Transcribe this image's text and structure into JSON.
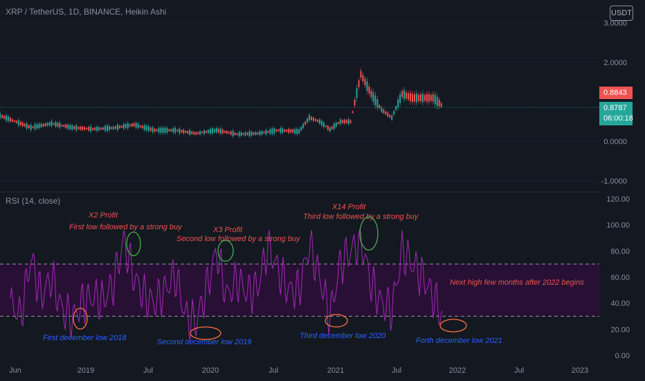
{
  "header": {
    "title": "XRP / TetherUS, 1D, BINANCE, Heikin Ashi",
    "currency_button": "USDT"
  },
  "price_axis": {
    "ticks": [
      "3.0000",
      "2.0000",
      "0.0000",
      "-1.0000"
    ],
    "last_price": "0.8843",
    "prev_close": "0.8787",
    "countdown": "06:00:18",
    "colors": {
      "down": "#ef5350",
      "up": "#26a69a"
    }
  },
  "rsi": {
    "label": "RSI (14, close)",
    "ticks": [
      "120.00",
      "100.00",
      "80.00",
      "60.00",
      "40.00",
      "20.00",
      "0.00"
    ],
    "upper_band": 70,
    "lower_band": 30,
    "line_color": "#9c27b0",
    "band_fill_color": "#2a1036"
  },
  "time_axis": {
    "ticks": [
      "Jun",
      "2019",
      "Jul",
      "2020",
      "Jul",
      "2021",
      "Jul",
      "2022",
      "Jul",
      "2023"
    ]
  },
  "annotations": {
    "profit_x2": "X2 Profit",
    "first_low_buy": "First low followed by a strong buy",
    "profit_x3": "X3 Profit",
    "second_low_buy": "Second low followed by a strong buy",
    "profit_x14": "X14 Profit",
    "third_low_buy": "Third low followed by a strong buy",
    "next_high": "Next high few months after 2022 begins",
    "first_december_low": "First december low 2018",
    "second_december_low": "Second december low 2019",
    "third_december_low": "Third december low 2020",
    "forth_december_low": "Forth december low 2021",
    "colors": {
      "red_text": "#ef5350",
      "blue_text": "#2962ff",
      "circle_green": "#4caf50",
      "circle_orange": "#ff7043"
    }
  },
  "chart_data": [
    {
      "type": "line",
      "title": "XRP / TetherUS, 1D, BINANCE, Heikin Ashi",
      "series": [
        {
          "name": "XRP / TetherUS",
          "x": [
            "2018-05",
            "2018-06",
            "2018-08",
            "2018-10",
            "2018-12",
            "2019-02",
            "2019-04",
            "2019-06",
            "2019-08",
            "2019-10",
            "2019-12",
            "2020-02",
            "2020-04",
            "2020-06",
            "2020-08",
            "2020-10",
            "2020-11",
            "2020-12",
            "2021-01",
            "2021-02",
            "2021-03",
            "2021-04",
            "2021-05",
            "2021-06",
            "2021-07",
            "2021-08",
            "2021-09",
            "2021-10",
            "2021-11",
            "2021-12"
          ],
          "values": [
            0.65,
            0.55,
            0.35,
            0.45,
            0.35,
            0.31,
            0.34,
            0.42,
            0.28,
            0.28,
            0.2,
            0.28,
            0.18,
            0.2,
            0.28,
            0.25,
            0.6,
            0.5,
            0.3,
            0.5,
            0.5,
            1.7,
            1.2,
            0.8,
            0.6,
            1.2,
            1.1,
            1.1,
            1.1,
            0.88
          ]
        }
      ],
      "yticks": [
        "3.0000",
        "2.0000",
        "0.0000",
        "-1.0000"
      ],
      "ylim": [
        -1.2,
        3.0
      ]
    },
    {
      "type": "line",
      "title": "RSI (14, close)",
      "series": [
        {
          "name": "RSI (14, close)",
          "x": [
            "2018-06",
            "2018-07",
            "2018-08",
            "2018-09",
            "2018-10",
            "2018-11",
            "2018-12",
            "2019-01",
            "2019-02",
            "2019-03",
            "2019-04",
            "2019-05",
            "2019-06",
            "2019-07",
            "2019-08",
            "2019-09",
            "2019-10",
            "2019-11",
            "2019-12",
            "2020-01",
            "2020-02",
            "2020-03",
            "2020-04",
            "2020-05",
            "2020-06",
            "2020-07",
            "2020-08",
            "2020-09",
            "2020-10",
            "2020-11",
            "2020-12",
            "2021-01",
            "2021-02",
            "2021-03",
            "2021-04",
            "2021-05",
            "2021-06",
            "2021-07",
            "2021-08",
            "2021-09",
            "2021-10",
            "2021-11",
            "2021-12"
          ],
          "values": [
            40,
            30,
            75,
            45,
            60,
            35,
            28,
            40,
            45,
            42,
            55,
            88,
            60,
            45,
            40,
            50,
            62,
            30,
            25,
            50,
            80,
            45,
            58,
            48,
            52,
            85,
            65,
            50,
            50,
            85,
            60,
            30,
            70,
            80,
            88,
            55,
            40,
            35,
            80,
            70,
            60,
            45,
            28
          ]
        }
      ],
      "yticks": [
        "120.00",
        "100.00",
        "80.00",
        "60.00",
        "40.00",
        "20.00",
        "0.00"
      ],
      "ylim": [
        0,
        120
      ],
      "bands": [
        30,
        70
      ]
    }
  ]
}
